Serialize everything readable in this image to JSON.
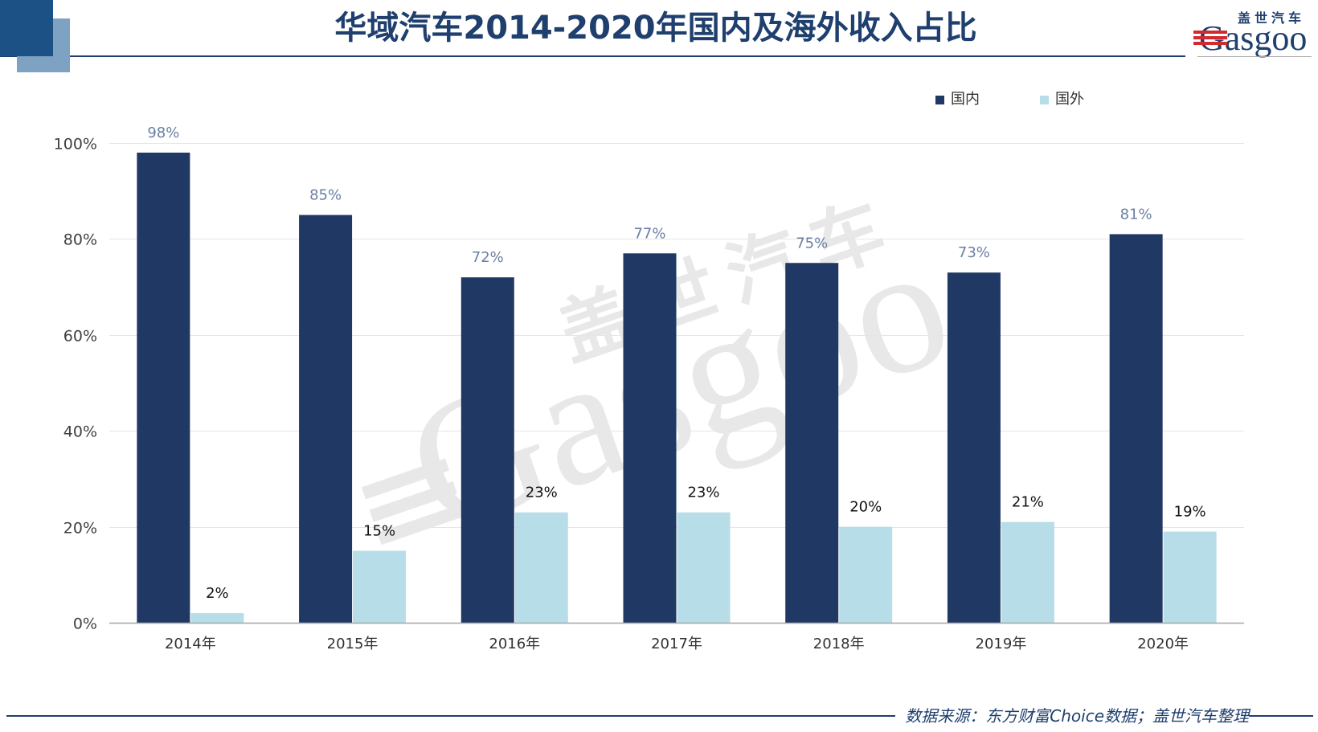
{
  "colors": {
    "title_text": "#1F3F6E",
    "rule_line": "#1F3F6E",
    "corner_dark": "#1B5185",
    "corner_light": "#7DA2C2",
    "logo_red": "#D42A2E",
    "watermark": "#E8E8E8"
  },
  "logo": {
    "cn_name": "盖世汽车",
    "en_name": "Gasgoo"
  },
  "watermark": {
    "cn_name": "盖世汽车",
    "en_name": "Gasgoo"
  },
  "chart_data": {
    "type": "bar",
    "title": "华域汽车2014-2020年国内及海外收入占比",
    "xlabel": "",
    "ylabel": "",
    "categories": [
      "2014年",
      "2015年",
      "2016年",
      "2017年",
      "2018年",
      "2019年",
      "2020年"
    ],
    "series": [
      {
        "name": "国内",
        "values": [
          98,
          85,
          72,
          77,
          75,
          73,
          81
        ],
        "labels": [
          "98%",
          "85%",
          "72%",
          "77%",
          "75%",
          "73%",
          "81%"
        ],
        "color": "#203864",
        "label_color": "#6A7FA3"
      },
      {
        "name": "国外",
        "values": [
          2,
          15,
          23,
          23,
          20,
          21,
          19
        ],
        "labels": [
          "2%",
          "15%",
          "23%",
          "23%",
          "20%",
          "21%",
          "19%"
        ],
        "color": "#B7DDE8",
        "label_color": "#111111"
      }
    ],
    "ylim": [
      0,
      100
    ],
    "y_ticks": [
      0,
      20,
      40,
      60,
      80,
      100
    ],
    "y_tick_labels": [
      "0%",
      "20%",
      "40%",
      "60%",
      "80%",
      "100%"
    ],
    "grid": true,
    "legend_position": "top-right",
    "source": "数据来源：东方财富Choice数据；盖世汽车整理"
  }
}
